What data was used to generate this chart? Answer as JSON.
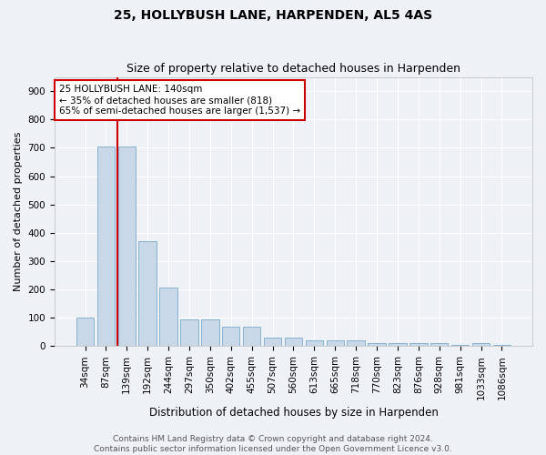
{
  "title": "25, HOLLYBUSH LANE, HARPENDEN, AL5 4AS",
  "subtitle": "Size of property relative to detached houses in Harpenden",
  "xlabel": "Distribution of detached houses by size in Harpenden",
  "ylabel": "Number of detached properties",
  "categories": [
    "34sqm",
    "87sqm",
    "139sqm",
    "192sqm",
    "244sqm",
    "297sqm",
    "350sqm",
    "402sqm",
    "455sqm",
    "507sqm",
    "560sqm",
    "613sqm",
    "665sqm",
    "718sqm",
    "770sqm",
    "823sqm",
    "876sqm",
    "928sqm",
    "981sqm",
    "1033sqm",
    "1086sqm"
  ],
  "values": [
    100,
    706,
    706,
    370,
    205,
    95,
    95,
    70,
    70,
    30,
    30,
    20,
    20,
    20,
    10,
    10,
    10,
    10,
    5,
    10,
    5
  ],
  "bar_color": "#c8d8e8",
  "bar_edge_color": "#7aaac8",
  "vline_color": "#cc0000",
  "vline_x": 1.55,
  "annotation_text": "25 HOLLYBUSH LANE: 140sqm\n← 35% of detached houses are smaller (818)\n65% of semi-detached houses are larger (1,537) →",
  "annotation_box_color": "#ffffff",
  "annotation_box_edge_color": "#cc0000",
  "footer_text": "Contains HM Land Registry data © Crown copyright and database right 2024.\nContains public sector information licensed under the Open Government Licence v3.0.",
  "ylim": [
    0,
    950
  ],
  "yticks": [
    0,
    100,
    200,
    300,
    400,
    500,
    600,
    700,
    800,
    900
  ],
  "background_color": "#eef2f7",
  "grid_color": "#ffffff",
  "title_fontsize": 10,
  "subtitle_fontsize": 9,
  "xlabel_fontsize": 8.5,
  "ylabel_fontsize": 8,
  "tick_fontsize": 7.5,
  "footer_fontsize": 6.5,
  "annotation_fontsize": 7.5
}
